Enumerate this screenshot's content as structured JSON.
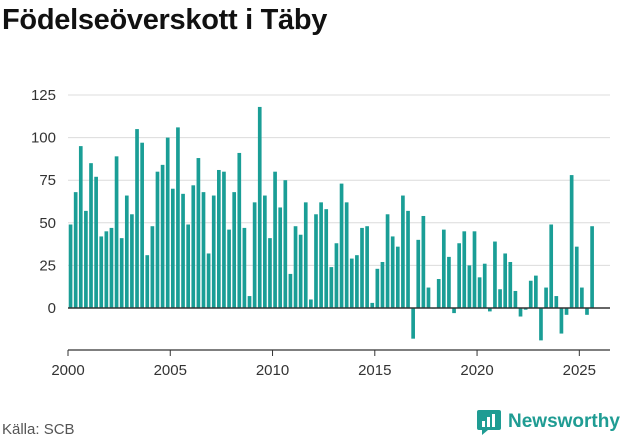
{
  "title": "Födelseöverskott i Täby",
  "source": "Källa: SCB",
  "brand": {
    "name": "Newsworthy",
    "icon": "newsworthy-logo-icon"
  },
  "colors": {
    "bar": "#1a9e96",
    "grid": "#dcdcdc",
    "axis": "#333333",
    "brand": "#1f9c93"
  },
  "chart_data": {
    "type": "bar",
    "title": "Födelseöverskott i Täby",
    "xlabel": "",
    "ylabel": "",
    "ylim": [
      -20,
      130
    ],
    "xlim": [
      2000,
      2026.5
    ],
    "x_ticks": [
      "2000",
      "2005",
      "2010",
      "2015",
      "2020",
      "2025"
    ],
    "y_ticks": [
      "0",
      "25",
      "50",
      "75",
      "100",
      "125"
    ],
    "grid": true,
    "frequency": "quarterly",
    "start": "2000 Q1",
    "values": [
      49,
      68,
      95,
      57,
      85,
      77,
      42,
      45,
      47,
      89,
      41,
      66,
      55,
      105,
      97,
      31,
      48,
      80,
      84,
      100,
      70,
      106,
      67,
      49,
      72,
      88,
      68,
      32,
      66,
      81,
      80,
      46,
      68,
      91,
      47,
      7,
      62,
      118,
      66,
      41,
      80,
      59,
      75,
      20,
      48,
      43,
      62,
      5,
      55,
      62,
      58,
      24,
      38,
      73,
      62,
      29,
      31,
      47,
      48,
      3,
      23,
      27,
      55,
      42,
      36,
      66,
      57,
      -18,
      40,
      54,
      12,
      0,
      17,
      46,
      30,
      -3,
      38,
      45,
      25,
      45,
      18,
      26,
      -2,
      39,
      11,
      32,
      27,
      10,
      -5,
      -1,
      16,
      19,
      -19,
      12,
      49,
      7,
      -15,
      -4,
      78,
      36,
      12,
      -4,
      48
    ]
  }
}
